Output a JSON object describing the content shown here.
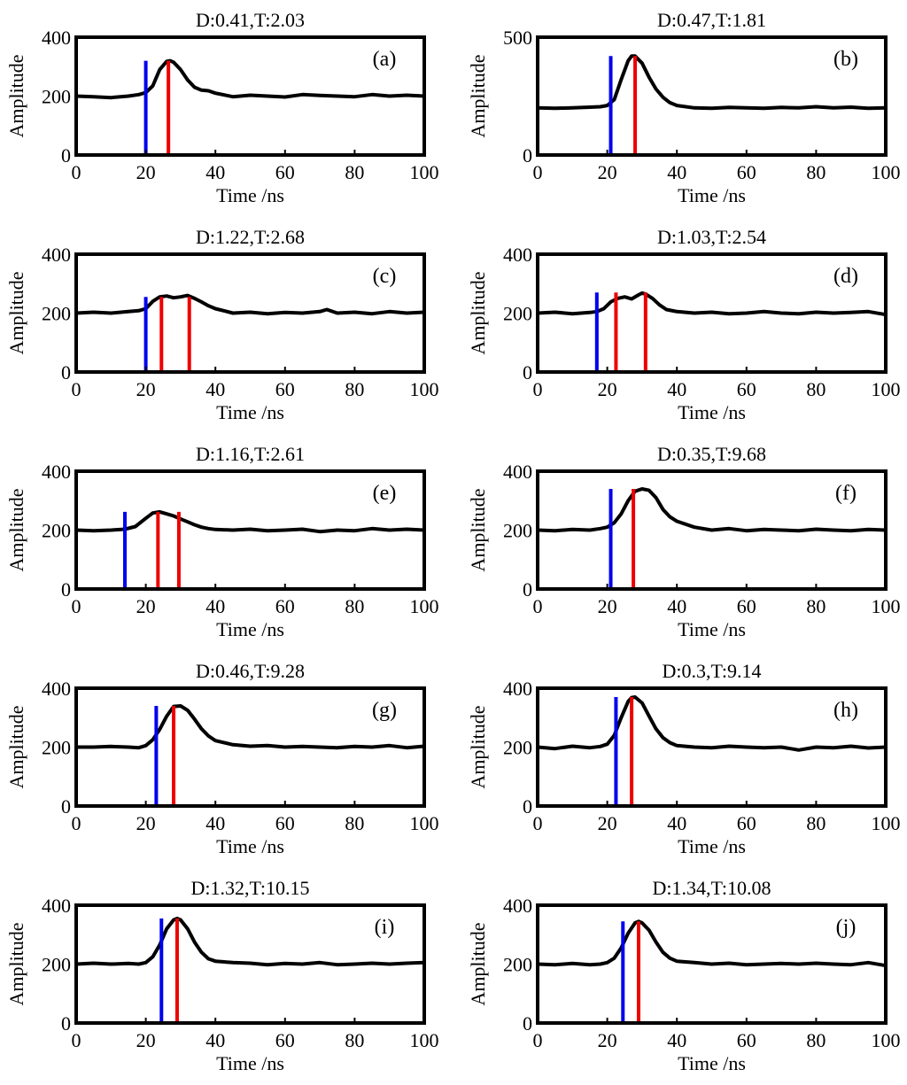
{
  "colors": {
    "signal": "#000000",
    "blue_marker": "#0000ee",
    "red_marker": "#ee0000",
    "axes": "#000000",
    "background": "#ffffff"
  },
  "chart_data": [
    {
      "type": "line",
      "panel": "(a)",
      "title": "D:0.41,T:2.03",
      "xlabel": "Time /ns",
      "ylabel": "Amplitude",
      "xlim": [
        0,
        100
      ],
      "ylim": [
        0,
        400
      ],
      "xticks": [
        "0",
        "20",
        "40",
        "60",
        "80",
        "100"
      ],
      "yticks": [
        "0",
        "200",
        "400"
      ],
      "series": [
        {
          "x": [
            0,
            5,
            10,
            15,
            18,
            20,
            22,
            24,
            26,
            27,
            28,
            30,
            32,
            34,
            36,
            38,
            40,
            45,
            50,
            55,
            60,
            65,
            70,
            75,
            80,
            85,
            90,
            95,
            100
          ],
          "y": [
            200,
            198,
            195,
            200,
            205,
            212,
            235,
            290,
            318,
            320,
            315,
            290,
            255,
            230,
            220,
            218,
            210,
            198,
            203,
            200,
            197,
            205,
            202,
            200,
            198,
            205,
            200,
            203,
            200
          ]
        }
      ],
      "blue_markers": [
        {
          "x": 20,
          "height": 320
        }
      ],
      "red_markers": [
        {
          "x": 26.5,
          "height": 320
        }
      ]
    },
    {
      "type": "line",
      "panel": "(b)",
      "title": "D:0.47,T:1.81",
      "xlabel": "Time /ns",
      "ylabel": "Amplitude",
      "xlim": [
        0,
        100
      ],
      "ylim": [
        0,
        500
      ],
      "xticks": [
        "0",
        "20",
        "40",
        "60",
        "80",
        "100"
      ],
      "yticks": [
        "0",
        "500"
      ],
      "series": [
        {
          "x": [
            0,
            5,
            10,
            15,
            18,
            20,
            22,
            24,
            26,
            27,
            28,
            30,
            32,
            34,
            36,
            38,
            40,
            45,
            50,
            55,
            60,
            65,
            70,
            75,
            80,
            85,
            90,
            95,
            100
          ],
          "y": [
            200,
            198,
            200,
            203,
            205,
            210,
            235,
            320,
            400,
            420,
            420,
            390,
            330,
            280,
            245,
            222,
            210,
            200,
            198,
            202,
            200,
            198,
            202,
            200,
            205,
            200,
            203,
            198,
            200
          ]
        }
      ],
      "blue_markers": [
        {
          "x": 21,
          "height": 420
        }
      ],
      "red_markers": [
        {
          "x": 28,
          "height": 420
        }
      ]
    },
    {
      "type": "line",
      "panel": "(c)",
      "title": "D:1.22,T:2.68",
      "xlabel": "Time /ns",
      "ylabel": "Amplitude",
      "xlim": [
        0,
        100
      ],
      "ylim": [
        0,
        400
      ],
      "xticks": [
        "0",
        "20",
        "40",
        "60",
        "80",
        "100"
      ],
      "yticks": [
        "0",
        "200",
        "400"
      ],
      "series": [
        {
          "x": [
            0,
            5,
            10,
            15,
            18,
            20,
            22,
            24,
            26,
            28,
            30,
            32,
            34,
            36,
            38,
            40,
            45,
            50,
            55,
            60,
            65,
            70,
            72,
            75,
            80,
            85,
            90,
            95,
            100
          ],
          "y": [
            200,
            203,
            200,
            205,
            208,
            215,
            240,
            255,
            258,
            252,
            255,
            260,
            250,
            238,
            225,
            215,
            200,
            203,
            198,
            202,
            200,
            205,
            212,
            200,
            203,
            198,
            205,
            200,
            203
          ]
        }
      ],
      "blue_markers": [
        {
          "x": 20,
          "height": 255
        }
      ],
      "red_markers": [
        {
          "x": 24.5,
          "height": 255
        },
        {
          "x": 32.5,
          "height": 255
        }
      ]
    },
    {
      "type": "line",
      "panel": "(d)",
      "title": "D:1.03,T:2.54",
      "xlabel": "Time /ns",
      "ylabel": "Amplitude",
      "xlim": [
        0,
        100
      ],
      "ylim": [
        0,
        400
      ],
      "xticks": [
        "0",
        "20",
        "40",
        "60",
        "80",
        "100"
      ],
      "yticks": [
        "0",
        "200",
        "400"
      ],
      "series": [
        {
          "x": [
            0,
            5,
            10,
            15,
            17,
            19,
            21,
            23,
            25,
            27,
            29,
            30,
            31,
            33,
            35,
            37,
            40,
            45,
            50,
            55,
            60,
            65,
            70,
            75,
            80,
            85,
            90,
            95,
            100
          ],
          "y": [
            200,
            203,
            198,
            202,
            205,
            215,
            238,
            250,
            255,
            248,
            262,
            268,
            265,
            250,
            228,
            212,
            205,
            200,
            203,
            198,
            200,
            205,
            200,
            198,
            203,
            200,
            202,
            205,
            195
          ]
        }
      ],
      "blue_markers": [
        {
          "x": 17,
          "height": 270
        }
      ],
      "red_markers": [
        {
          "x": 22.5,
          "height": 270
        },
        {
          "x": 31,
          "height": 270
        }
      ]
    },
    {
      "type": "line",
      "panel": "(e)",
      "title": "D:1.16,T:2.61",
      "xlabel": "Time /ns",
      "ylabel": "Amplitude",
      "xlim": [
        0,
        100
      ],
      "ylim": [
        0,
        400
      ],
      "xticks": [
        "0",
        "20",
        "40",
        "60",
        "80",
        "100"
      ],
      "yticks": [
        "0",
        "200",
        "400"
      ],
      "series": [
        {
          "x": [
            0,
            5,
            10,
            14,
            17,
            20,
            22,
            24,
            26,
            28,
            30,
            32,
            34,
            36,
            38,
            40,
            45,
            50,
            55,
            60,
            65,
            70,
            75,
            80,
            85,
            90,
            95,
            100
          ],
          "y": [
            200,
            198,
            200,
            203,
            212,
            240,
            258,
            262,
            255,
            248,
            238,
            228,
            218,
            210,
            205,
            202,
            200,
            203,
            198,
            200,
            203,
            195,
            200,
            198,
            205,
            200,
            203,
            200
          ]
        }
      ],
      "blue_markers": [
        {
          "x": 14,
          "height": 262
        }
      ],
      "red_markers": [
        {
          "x": 23.5,
          "height": 262
        },
        {
          "x": 29.5,
          "height": 262
        }
      ]
    },
    {
      "type": "line",
      "panel": "(f)",
      "title": "D:0.35,T:9.68",
      "xlabel": "Time /ns",
      "ylabel": "Amplitude",
      "xlim": [
        0,
        100
      ],
      "ylim": [
        0,
        400
      ],
      "xticks": [
        "0",
        "20",
        "40",
        "60",
        "80",
        "100"
      ],
      "yticks": [
        "0",
        "200",
        "400"
      ],
      "series": [
        {
          "x": [
            0,
            5,
            10,
            15,
            18,
            20,
            22,
            24,
            26,
            28,
            30,
            32,
            34,
            36,
            38,
            40,
            45,
            50,
            55,
            60,
            65,
            70,
            75,
            80,
            85,
            90,
            95,
            100
          ],
          "y": [
            200,
            198,
            202,
            200,
            205,
            210,
            225,
            255,
            300,
            332,
            340,
            335,
            310,
            270,
            245,
            230,
            210,
            200,
            205,
            198,
            202,
            200,
            198,
            203,
            200,
            198,
            202,
            200
          ]
        }
      ],
      "blue_markers": [
        {
          "x": 21,
          "height": 340
        }
      ],
      "red_markers": [
        {
          "x": 27.5,
          "height": 340
        }
      ]
    },
    {
      "type": "line",
      "panel": "(g)",
      "title": "D:0.46,T:9.28",
      "xlabel": "Time /ns",
      "ylabel": "Amplitude",
      "xlim": [
        0,
        100
      ],
      "ylim": [
        0,
        400
      ],
      "xticks": [
        "0",
        "20",
        "40",
        "60",
        "80",
        "100"
      ],
      "yticks": [
        "0",
        "200",
        "400"
      ],
      "series": [
        {
          "x": [
            0,
            5,
            10,
            15,
            18,
            20,
            22,
            24,
            26,
            28,
            30,
            32,
            34,
            36,
            38,
            40,
            45,
            50,
            55,
            60,
            65,
            70,
            75,
            80,
            85,
            90,
            95,
            100
          ],
          "y": [
            200,
            200,
            202,
            200,
            198,
            205,
            225,
            260,
            305,
            338,
            340,
            325,
            295,
            262,
            238,
            222,
            208,
            203,
            205,
            200,
            202,
            200,
            198,
            202,
            200,
            205,
            198,
            203
          ]
        }
      ],
      "blue_markers": [
        {
          "x": 23,
          "height": 340
        }
      ],
      "red_markers": [
        {
          "x": 28,
          "height": 340
        }
      ]
    },
    {
      "type": "line",
      "panel": "(h)",
      "title": "D:0.3,T:9.14",
      "xlabel": "Time /ns",
      "ylabel": "Amplitude",
      "xlim": [
        0,
        100
      ],
      "ylim": [
        0,
        400
      ],
      "xticks": [
        "0",
        "20",
        "40",
        "60",
        "80",
        "100"
      ],
      "yticks": [
        "0",
        "200",
        "400"
      ],
      "series": [
        {
          "x": [
            0,
            5,
            10,
            15,
            18,
            20,
            22,
            24,
            26,
            27,
            28,
            30,
            32,
            34,
            36,
            38,
            40,
            45,
            50,
            55,
            60,
            65,
            70,
            75,
            80,
            85,
            90,
            95,
            100
          ],
          "y": [
            200,
            195,
            203,
            198,
            202,
            210,
            240,
            300,
            355,
            368,
            370,
            350,
            305,
            262,
            232,
            215,
            205,
            200,
            198,
            203,
            200,
            198,
            200,
            190,
            200,
            198,
            203,
            197,
            200
          ]
        }
      ],
      "blue_markers": [
        {
          "x": 22.5,
          "height": 370
        }
      ],
      "red_markers": [
        {
          "x": 27,
          "height": 370
        }
      ]
    },
    {
      "type": "line",
      "panel": "(i)",
      "title": "D:1.32,T:10.15",
      "xlabel": "Time /ns",
      "ylabel": "Amplitude",
      "xlim": [
        0,
        100
      ],
      "ylim": [
        0,
        400
      ],
      "xticks": [
        "0",
        "20",
        "40",
        "60",
        "80",
        "100"
      ],
      "yticks": [
        "0",
        "200",
        "400"
      ],
      "series": [
        {
          "x": [
            0,
            5,
            10,
            15,
            18,
            20,
            22,
            24,
            26,
            28,
            29,
            30,
            32,
            34,
            36,
            38,
            40,
            45,
            50,
            55,
            60,
            65,
            70,
            75,
            80,
            85,
            90,
            95,
            100
          ],
          "y": [
            200,
            203,
            200,
            202,
            200,
            205,
            225,
            265,
            320,
            350,
            355,
            350,
            320,
            275,
            240,
            218,
            210,
            205,
            203,
            198,
            202,
            200,
            205,
            198,
            200,
            203,
            200,
            203,
            205
          ]
        }
      ],
      "blue_markers": [
        {
          "x": 24.5,
          "height": 355
        }
      ],
      "red_markers": [
        {
          "x": 29,
          "height": 355
        }
      ]
    },
    {
      "type": "line",
      "panel": "(j)",
      "title": "D:1.34,T:10.08",
      "xlabel": "Time /ns",
      "ylabel": "Amplitude",
      "xlim": [
        0,
        100
      ],
      "ylim": [
        0,
        400
      ],
      "xticks": [
        "0",
        "20",
        "40",
        "60",
        "80",
        "100"
      ],
      "yticks": [
        "0",
        "200",
        "400"
      ],
      "series": [
        {
          "x": [
            0,
            5,
            10,
            15,
            18,
            20,
            22,
            24,
            26,
            28,
            29,
            30,
            32,
            34,
            36,
            38,
            40,
            45,
            50,
            55,
            60,
            65,
            70,
            75,
            80,
            85,
            90,
            95,
            100
          ],
          "y": [
            200,
            198,
            202,
            198,
            200,
            205,
            220,
            255,
            305,
            340,
            345,
            340,
            315,
            275,
            240,
            220,
            210,
            205,
            200,
            203,
            198,
            200,
            202,
            200,
            203,
            200,
            198,
            205,
            195
          ]
        }
      ],
      "blue_markers": [
        {
          "x": 24.5,
          "height": 345
        }
      ],
      "red_markers": [
        {
          "x": 29,
          "height": 345
        }
      ]
    }
  ]
}
